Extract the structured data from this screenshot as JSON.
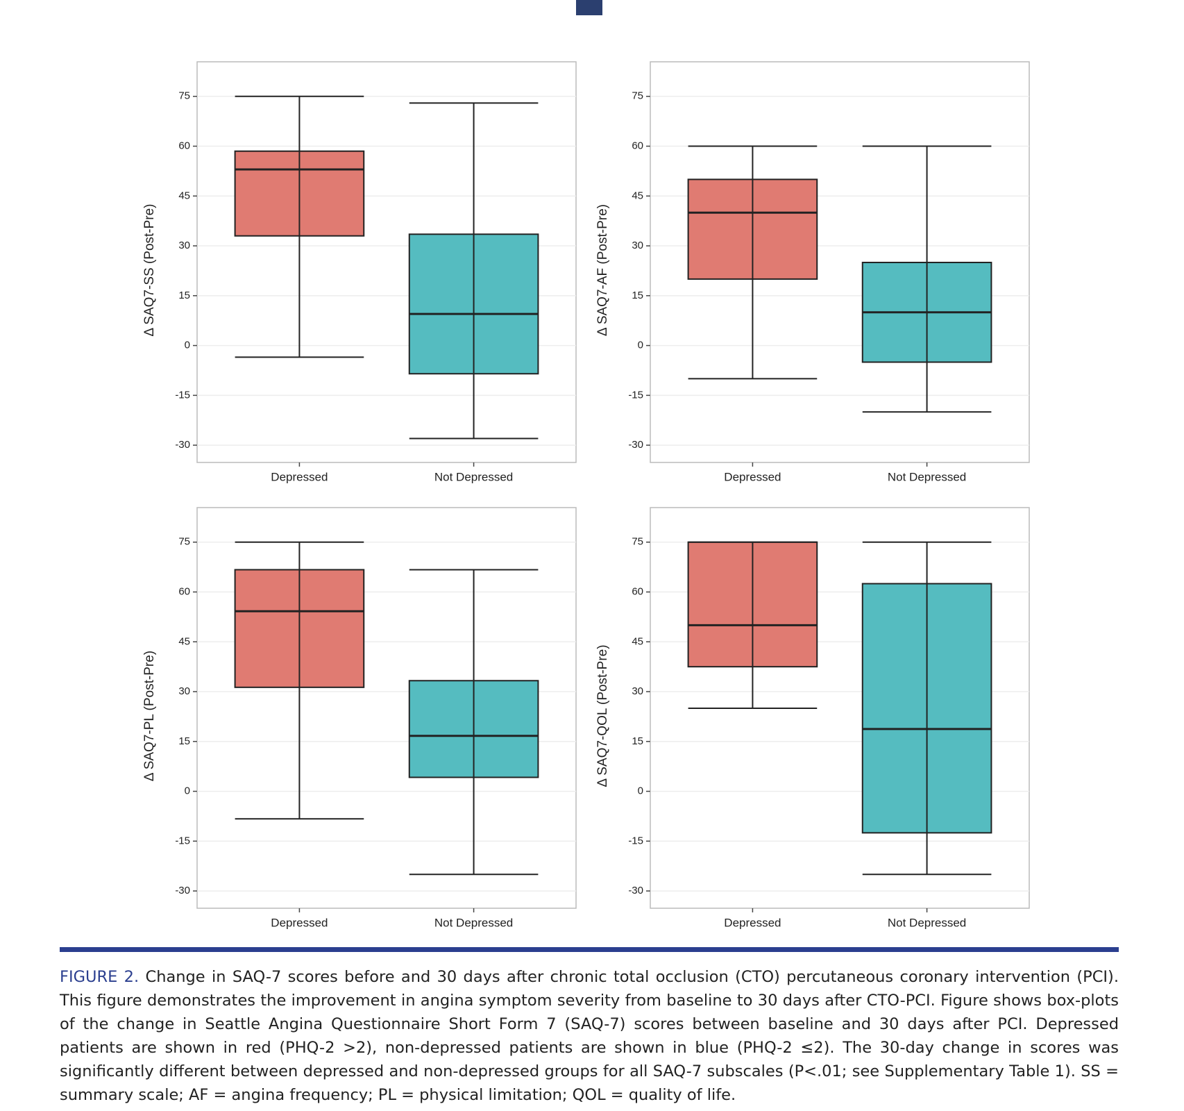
{
  "chart_data": [
    {
      "type": "box",
      "ylabel": "Δ SAQ7-SS (Post-Pre)",
      "categories": [
        "Depressed",
        "Not Depressed"
      ],
      "colors": [
        "#e07b72",
        "#55bcc0"
      ],
      "boxes": [
        {
          "whislo": -3.5,
          "q1": 33,
          "med": 53,
          "q3": 58.5,
          "whishi": 75
        },
        {
          "whislo": -28,
          "q1": -8.5,
          "med": 9.5,
          "q3": 33.5,
          "whishi": 73
        }
      ],
      "ylim": [
        -35.2,
        85.4
      ],
      "yticks": [
        -30,
        -15,
        0,
        15,
        30,
        45,
        60,
        75
      ],
      "grid": true
    },
    {
      "type": "box",
      "ylabel": "Δ SAQ7-AF (Post-Pre)",
      "categories": [
        "Depressed",
        "Not Depressed"
      ],
      "colors": [
        "#e07b72",
        "#55bcc0"
      ],
      "boxes": [
        {
          "whislo": -10,
          "q1": 20,
          "med": 40,
          "q3": 50,
          "whishi": 60
        },
        {
          "whislo": -20,
          "q1": -5,
          "med": 10,
          "q3": 25,
          "whishi": 60
        }
      ],
      "ylim": [
        -35.2,
        85.4
      ],
      "yticks": [
        -30,
        -15,
        0,
        15,
        30,
        45,
        60,
        75
      ],
      "grid": true
    },
    {
      "type": "box",
      "ylabel": "Δ SAQ7-PL (Post-Pre)",
      "categories": [
        "Depressed",
        "Not Depressed"
      ],
      "colors": [
        "#e07b72",
        "#55bcc0"
      ],
      "boxes": [
        {
          "whislo": -8.3,
          "q1": 31.3,
          "med": 54.2,
          "q3": 66.7,
          "whishi": 75
        },
        {
          "whislo": -25,
          "q1": 4.2,
          "med": 16.7,
          "q3": 33.3,
          "whishi": 66.7
        }
      ],
      "ylim": [
        -35.2,
        85.4
      ],
      "yticks": [
        -30,
        -15,
        0,
        15,
        30,
        45,
        60,
        75
      ],
      "grid": true
    },
    {
      "type": "box",
      "ylabel": "Δ SAQ7-QOL (Post-Pre)",
      "categories": [
        "Depressed",
        "Not Depressed"
      ],
      "colors": [
        "#e07b72",
        "#55bcc0"
      ],
      "boxes": [
        {
          "whislo": 25,
          "q1": 37.5,
          "med": 50,
          "q3": 75,
          "whishi": 75
        },
        {
          "whislo": -25,
          "q1": -12.5,
          "med": 18.75,
          "q3": 62.5,
          "whishi": 75
        }
      ],
      "ylim": [
        -35.2,
        85.4
      ],
      "yticks": [
        -30,
        -15,
        0,
        15,
        30,
        45,
        60,
        75
      ],
      "grid": true
    }
  ],
  "caption": {
    "label": "FIGURE 2.",
    "text": "Change in SAQ-7 scores before and 30 days after chronic total occlusion (CTO) percutaneous coronary intervention (PCI). This figure demonstrates the improvement in angina symptom severity from baseline to 30 days after CTO-PCI. Figure shows box-plots of the change in Seattle Angina Questionnaire Short Form 7 (SAQ-7) scores between baseline and 30 days after PCI. Depressed patients are shown in red (PHQ-2 >2), non-depressed patients are shown in blue (PHQ-2 ≤2). The 30-day change in scores was significantly different between depressed and non-depressed groups for all SAQ-7 subscales (P<.01; see Supplementary Table 1). SS = summary scale; AF = angina frequency; PL = physical limitation; QOL = quality of life."
  }
}
